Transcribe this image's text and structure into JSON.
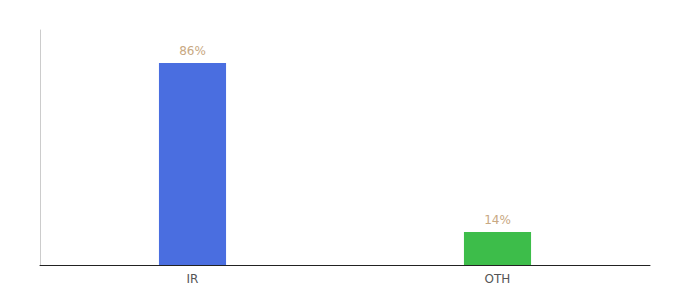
{
  "chart_data": {
    "type": "bar",
    "categories": [
      "IR",
      "OTH"
    ],
    "values": [
      86,
      14
    ],
    "value_labels": [
      "86%",
      "14%"
    ],
    "colors": [
      "#4a6ee0",
      "#3dbd4a"
    ],
    "ylim": [
      0,
      100
    ],
    "grid": false,
    "data_labels": true,
    "tick_labels": "x"
  }
}
